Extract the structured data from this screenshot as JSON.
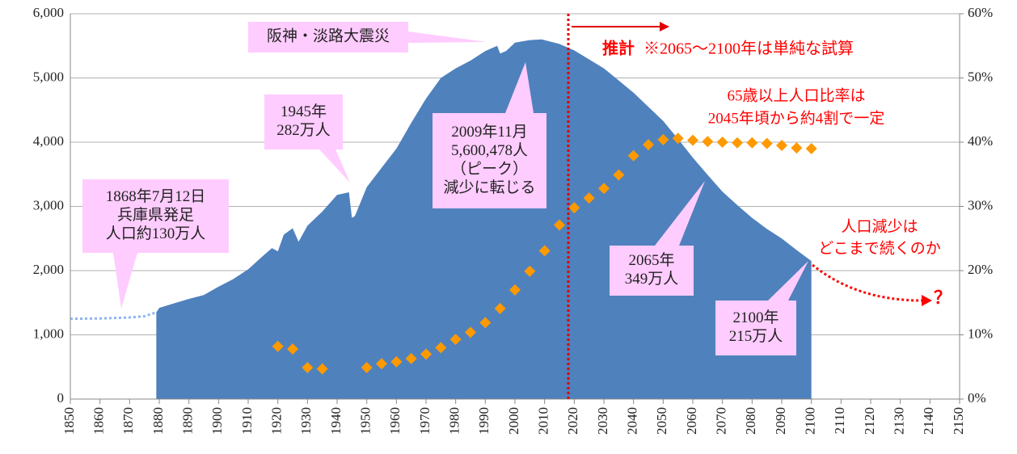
{
  "chart_data": {
    "type": "area",
    "xlim": [
      1850,
      2150
    ],
    "xticks": [
      1850,
      1860,
      1870,
      1880,
      1890,
      1900,
      1910,
      1920,
      1930,
      1940,
      1950,
      1960,
      1970,
      1980,
      1990,
      2000,
      2010,
      2020,
      2030,
      2040,
      2050,
      2060,
      2070,
      2080,
      2090,
      2100,
      2110,
      2120,
      2130,
      2140,
      2150
    ],
    "ylim": [
      0,
      6000
    ],
    "yticks": [
      0,
      {
        "value": 1000,
        "label": "1,000"
      },
      {
        "value": 2000,
        "label": "2,000"
      },
      {
        "value": 3000,
        "label": "3,000"
      },
      {
        "value": 4000,
        "label": "4,000"
      },
      {
        "value": 5000,
        "label": "5,000"
      },
      {
        "value": 6000,
        "label": "6,000"
      }
    ],
    "y2lim": [
      0,
      60
    ],
    "y2ticks": [
      {
        "value": 0,
        "label": "0%"
      },
      {
        "value": 10,
        "label": "10%"
      },
      {
        "value": 20,
        "label": "20%"
      },
      {
        "value": 30,
        "label": "30%"
      },
      {
        "value": 40,
        "label": "40%"
      },
      {
        "value": 50,
        "label": "50%"
      },
      {
        "value": 60,
        "label": "60%"
      }
    ],
    "grid": true,
    "series": [
      {
        "type": "line",
        "dashed": true,
        "color": "#8db4f5",
        "x": [
          1850,
          1860,
          1870,
          1875,
          1879
        ],
        "values": [
          1250,
          1255,
          1270,
          1290,
          1350
        ]
      },
      {
        "type": "area",
        "color": "#4f81bd",
        "x": [
          1879,
          1880,
          1885,
          1890,
          1895,
          1900,
          1905,
          1910,
          1915,
          1918,
          1920,
          1922,
          1925,
          1927,
          1930,
          1935,
          1940,
          1944,
          1945,
          1946,
          1950,
          1955,
          1960,
          1965,
          1970,
          1975,
          1980,
          1985,
          1990,
          1994,
          1995,
          1997,
          2000,
          2005,
          2009,
          2015,
          2020,
          2025,
          2030,
          2035,
          2040,
          2045,
          2050,
          2055,
          2060,
          2065,
          2070,
          2075,
          2080,
          2085,
          2090,
          2095,
          2100
        ],
        "values": [
          1350,
          1420,
          1490,
          1560,
          1620,
          1750,
          1870,
          2020,
          2230,
          2350,
          2300,
          2560,
          2660,
          2450,
          2700,
          2920,
          3180,
          3220,
          2820,
          2850,
          3300,
          3600,
          3900,
          4300,
          4680,
          5000,
          5150,
          5270,
          5420,
          5500,
          5380,
          5420,
          5550,
          5590,
          5600,
          5530,
          5430,
          5290,
          5150,
          4960,
          4770,
          4550,
          4330,
          4050,
          3760,
          3490,
          3230,
          3020,
          2820,
          2650,
          2500,
          2320,
          2150
        ]
      },
      {
        "type": "scatter",
        "axis": "y2",
        "color": "#ff9900",
        "x": [
          1920,
          1925,
          1930,
          1935,
          1950,
          1955,
          1960,
          1965,
          1970,
          1975,
          1980,
          1985,
          1990,
          1995,
          2000,
          2005,
          2010,
          2015,
          2020,
          2025,
          2030,
          2035,
          2040,
          2045,
          2050,
          2055,
          2060,
          2065,
          2070,
          2075,
          2080,
          2085,
          2090,
          2095,
          2100
        ],
        "values": [
          8.2,
          7.8,
          4.9,
          4.7,
          4.9,
          5.5,
          5.8,
          6.3,
          7.0,
          8.0,
          9.3,
          10.4,
          11.9,
          14.1,
          17.0,
          19.9,
          23.1,
          27.1,
          29.8,
          31.3,
          32.8,
          34.9,
          37.9,
          39.6,
          40.4,
          40.6,
          40.3,
          40.1,
          40.0,
          39.9,
          39.9,
          39.8,
          39.5,
          39.1,
          39.0
        ]
      }
    ],
    "vline": {
      "x": 2018,
      "color": "#e00000"
    },
    "annotations": [
      {
        "lines": [
          "1868年7月12日",
          "兵庫県発足",
          "人口約130万人"
        ]
      },
      {
        "lines": [
          "1945年",
          "282万人"
        ]
      },
      {
        "lines": [
          "阪神・淡路大震災"
        ]
      },
      {
        "lines": [
          "2009年11月",
          "5,600,478人",
          "（ピーク）",
          "減少に転じる"
        ]
      },
      {
        "lines": [
          "2065年",
          "349万人"
        ]
      },
      {
        "lines": [
          "2100年",
          "215万人"
        ]
      }
    ],
    "notes": [
      {
        "lines": [
          "推計"
        ]
      },
      {
        "lines": [
          "※2065～2100年は単純な試算"
        ]
      },
      {
        "lines": [
          "65歳以上人口比率は",
          "2045年頃から約4割で一定"
        ]
      },
      {
        "lines": [
          "人口減少は",
          "どこまで続くのか"
        ]
      },
      {
        "lines": [
          "？"
        ]
      }
    ]
  }
}
